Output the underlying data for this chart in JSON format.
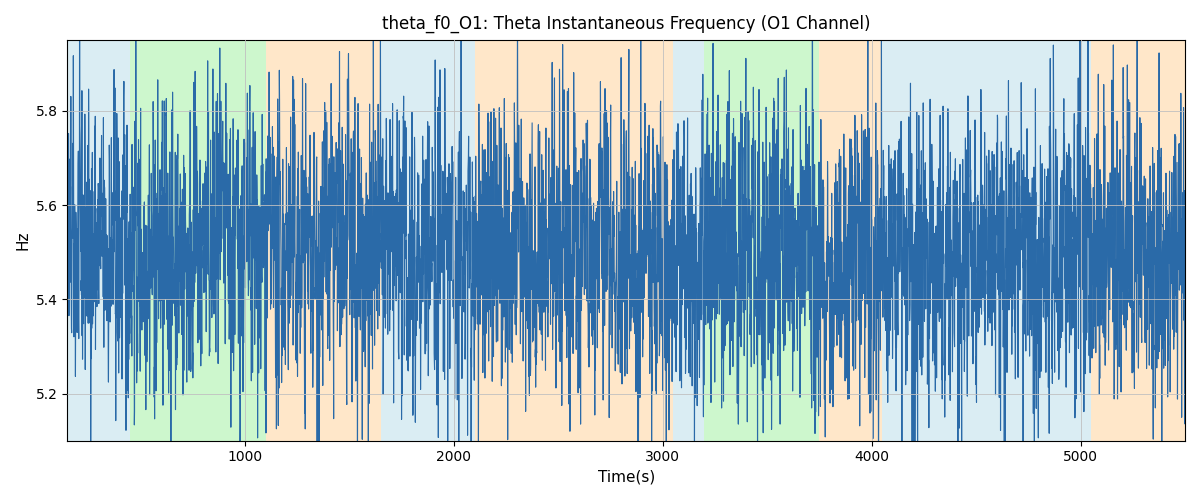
{
  "title": "theta_f0_O1: Theta Instantaneous Frequency (O1 Channel)",
  "xlabel": "Time(s)",
  "ylabel": "Hz",
  "xlim": [
    150,
    5500
  ],
  "ylim": [
    5.1,
    5.95
  ],
  "yticks": [
    5.2,
    5.4,
    5.6,
    5.8
  ],
  "line_color": "#2a6aa8",
  "line_width": 0.8,
  "grid_color": "#c0c0c0",
  "background_color": "#ffffff",
  "figsize": [
    12,
    5
  ],
  "dpi": 100,
  "mean_freq": 5.5,
  "seed": 42,
  "n_points": 5500,
  "colored_bands": [
    {
      "xmin": 150,
      "xmax": 450,
      "color": "#add8e6",
      "alpha": 0.45
    },
    {
      "xmin": 450,
      "xmax": 1100,
      "color": "#90ee90",
      "alpha": 0.45
    },
    {
      "xmin": 1100,
      "xmax": 1650,
      "color": "#ffd59e",
      "alpha": 0.55
    },
    {
      "xmin": 1650,
      "xmax": 2100,
      "color": "#add8e6",
      "alpha": 0.45
    },
    {
      "xmin": 2100,
      "xmax": 3050,
      "color": "#ffd59e",
      "alpha": 0.55
    },
    {
      "xmin": 3050,
      "xmax": 3200,
      "color": "#add8e6",
      "alpha": 0.45
    },
    {
      "xmin": 3200,
      "xmax": 3750,
      "color": "#90ee90",
      "alpha": 0.45
    },
    {
      "xmin": 3750,
      "xmax": 4050,
      "color": "#ffd59e",
      "alpha": 0.55
    },
    {
      "xmin": 4050,
      "xmax": 5050,
      "color": "#add8e6",
      "alpha": 0.45
    },
    {
      "xmin": 5050,
      "xmax": 5500,
      "color": "#ffd59e",
      "alpha": 0.55
    }
  ]
}
